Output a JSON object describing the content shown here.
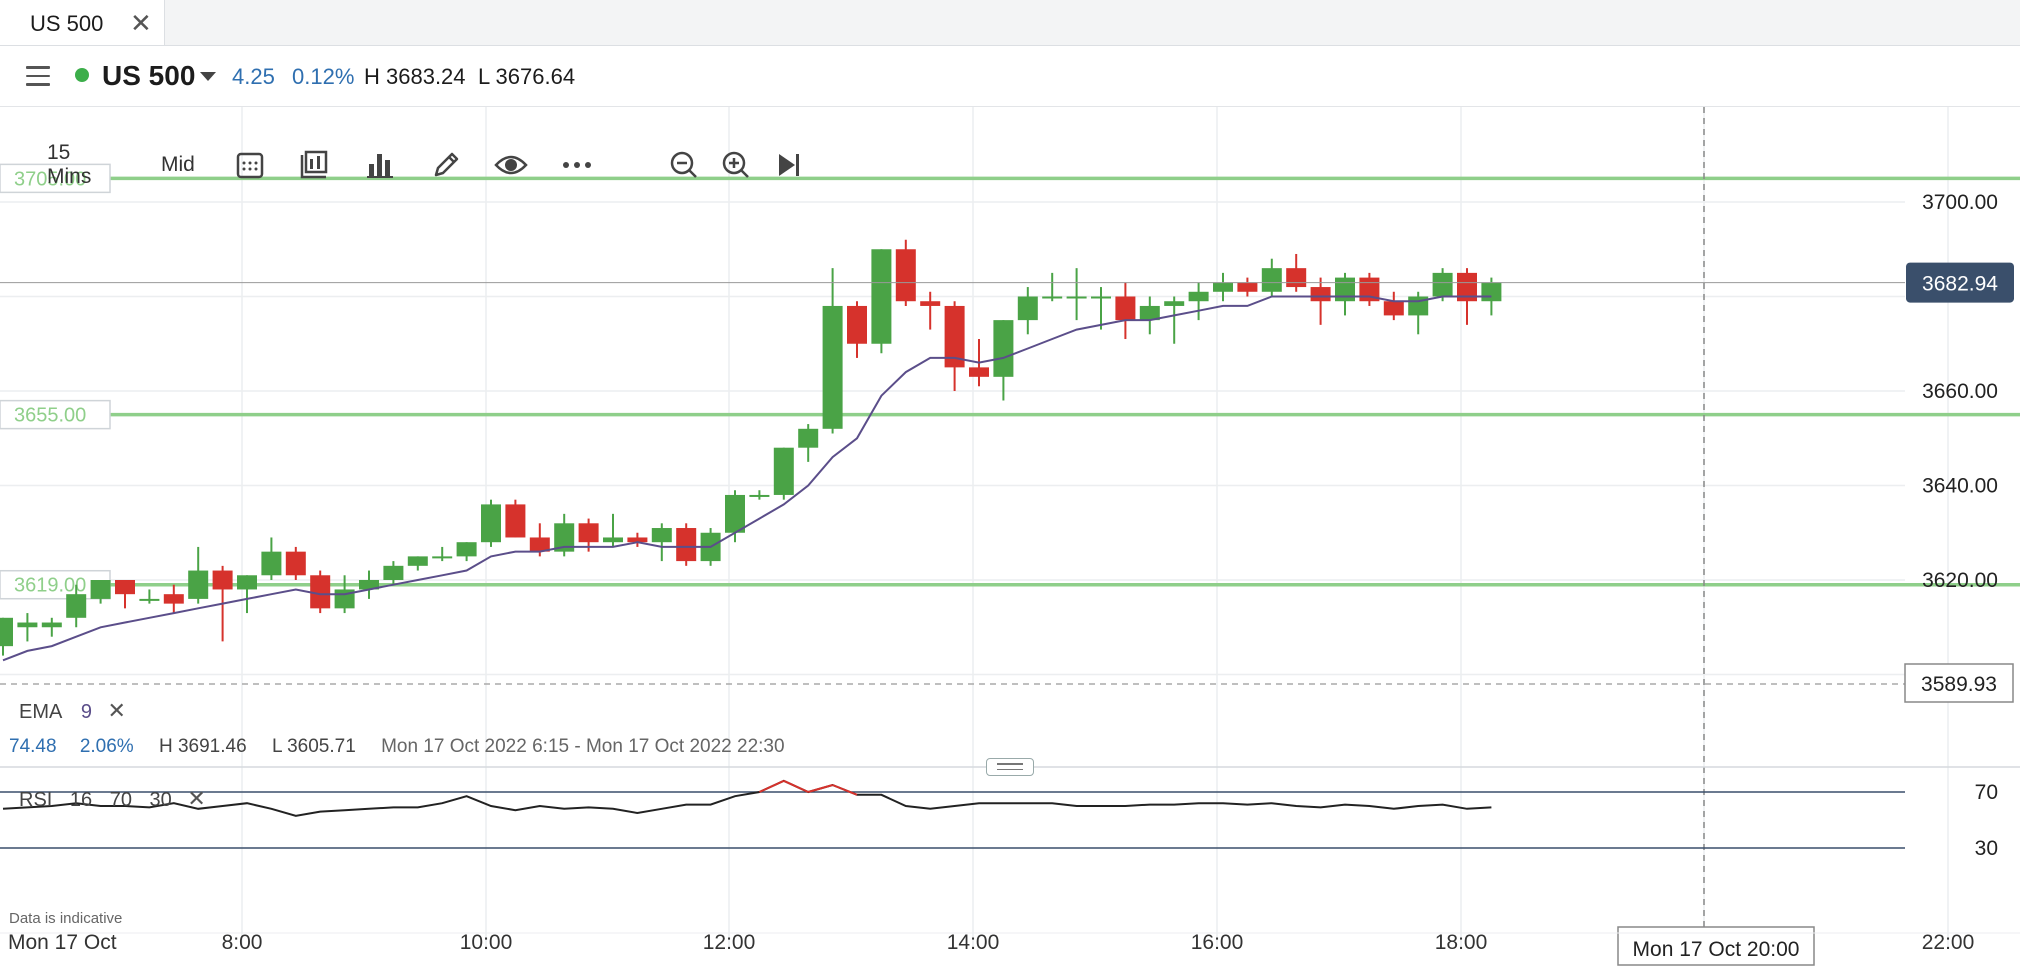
{
  "tab": {
    "label": "US 500",
    "close": "✕"
  },
  "header": {
    "instrument": "US 500",
    "change": "4.25",
    "change_pct": "0.12%",
    "high": "H 3683.24",
    "low": "L 3676.64",
    "status_color": "#3cae4a"
  },
  "toolbar": {
    "timeframe": "15 Mins",
    "price_type": "Mid",
    "icons": [
      "calendar-icon",
      "chart-type-icon",
      "indicators-icon",
      "draw-icon",
      "eye-icon",
      "more-icon",
      "zoom-out-icon",
      "zoom-in-icon",
      "jump-to-latest-icon"
    ]
  },
  "ema": {
    "label": "EMA",
    "period": "9",
    "close": "✕"
  },
  "range_info": {
    "change": "74.48",
    "change_pct": "2.06%",
    "high": "H 3691.46",
    "low": "L 3605.71",
    "period": "Mon 17 Oct 2022 6:15 - Mon 17 Oct 2022 22:30"
  },
  "rsi": {
    "label": "RSI",
    "period": "16",
    "upper": "70",
    "lower": "30",
    "close": "✕"
  },
  "disclaimer": "Data is indicative",
  "colors": {
    "up": "#4aa346",
    "down": "#d6322c",
    "ema": "#5b4e8a",
    "level": "#8fcf8a",
    "accent": "#2f6fb0"
  },
  "chart_data": {
    "type": "candlestick",
    "x_ticks": [
      "Mon 17 Oct",
      "8:00",
      "10:00",
      "12:00",
      "14:00",
      "16:00",
      "18:00",
      "20:00",
      "22:00"
    ],
    "y_ticks": [
      "3700.00",
      "3660.00",
      "3640.00",
      "3620.00"
    ],
    "price_label": "3682.94",
    "low_label": "3589.93",
    "crosshair_label": "Mon 17 Oct 20:00",
    "levels": [
      {
        "label": "3705.00",
        "value": 3705
      },
      {
        "label": "3655.00",
        "value": 3655
      },
      {
        "label": "3619.00",
        "value": 3619
      }
    ],
    "ohlc": [
      [
        3606,
        3612,
        3604,
        3612
      ],
      [
        3610,
        3613,
        3607,
        3611
      ],
      [
        3610,
        3612,
        3608,
        3611
      ],
      [
        3612,
        3619,
        3610,
        3617
      ],
      [
        3616,
        3620,
        3615,
        3620
      ],
      [
        3620,
        3620,
        3614,
        3617
      ],
      [
        3616,
        3618,
        3615,
        3616
      ],
      [
        3617,
        3619,
        3613,
        3615
      ],
      [
        3616,
        3627,
        3615,
        3622
      ],
      [
        3622,
        3623,
        3607,
        3618
      ],
      [
        3618,
        3621,
        3613,
        3621
      ],
      [
        3621,
        3629,
        3620,
        3626
      ],
      [
        3626,
        3627,
        3620,
        3621
      ],
      [
        3621,
        3622,
        3613,
        3614
      ],
      [
        3614,
        3621,
        3613,
        3618
      ],
      [
        3618,
        3622,
        3616,
        3620
      ],
      [
        3620,
        3624,
        3619,
        3623
      ],
      [
        3623,
        3625,
        3622,
        3625
      ],
      [
        3625,
        3627,
        3624,
        3625
      ],
      [
        3625,
        3628,
        3624,
        3628
      ],
      [
        3628,
        3637,
        3627,
        3636
      ],
      [
        3636,
        3637,
        3629,
        3629
      ],
      [
        3629,
        3632,
        3625,
        3626
      ],
      [
        3626,
        3634,
        3625,
        3632
      ],
      [
        3632,
        3633,
        3626,
        3628
      ],
      [
        3628,
        3634,
        3627,
        3629
      ],
      [
        3629,
        3630,
        3627,
        3628
      ],
      [
        3628,
        3632,
        3624,
        3631
      ],
      [
        3631,
        3632,
        3623,
        3624
      ],
      [
        3624,
        3631,
        3623,
        3630
      ],
      [
        3630,
        3639,
        3628,
        3638
      ],
      [
        3638,
        3639,
        3637,
        3638
      ],
      [
        3638,
        3648,
        3637,
        3648
      ],
      [
        3648,
        3653,
        3645,
        3652
      ],
      [
        3652,
        3686,
        3651,
        3678
      ],
      [
        3678,
        3679,
        3667,
        3670
      ],
      [
        3670,
        3690,
        3668,
        3690
      ],
      [
        3690,
        3692,
        3678,
        3679
      ],
      [
        3679,
        3681,
        3673,
        3678
      ],
      [
        3678,
        3679,
        3660,
        3665
      ],
      [
        3665,
        3671,
        3661,
        3663
      ],
      [
        3663,
        3675,
        3658,
        3675
      ],
      [
        3675,
        3682,
        3672,
        3680
      ],
      [
        3680,
        3685,
        3679,
        3680
      ],
      [
        3680,
        3686,
        3675,
        3680
      ],
      [
        3680,
        3682,
        3673,
        3680
      ],
      [
        3680,
        3683,
        3671,
        3675
      ],
      [
        3675,
        3680,
        3672,
        3678
      ],
      [
        3678,
        3680,
        3670,
        3679
      ],
      [
        3679,
        3683,
        3675,
        3681
      ],
      [
        3681,
        3685,
        3679,
        3683
      ],
      [
        3683,
        3684,
        3680,
        3681
      ],
      [
        3681,
        3688,
        3680,
        3686
      ],
      [
        3686,
        3689,
        3681,
        3682
      ],
      [
        3682,
        3684,
        3674,
        3679
      ],
      [
        3679,
        3685,
        3676,
        3684
      ],
      [
        3684,
        3685,
        3678,
        3679
      ],
      [
        3679,
        3681,
        3675,
        3676
      ],
      [
        3676,
        3681,
        3672,
        3680
      ],
      [
        3680,
        3686,
        3679,
        3685
      ],
      [
        3685,
        3686,
        3674,
        3679
      ],
      [
        3679,
        3684,
        3676,
        3683
      ]
    ],
    "ema": [
      3603,
      3605,
      3606,
      3608,
      3610,
      3611,
      3612,
      3613,
      3614,
      3615,
      3616,
      3617,
      3618,
      3617,
      3617,
      3618,
      3619,
      3620,
      3621,
      3622,
      3625,
      3626,
      3626,
      3627,
      3627,
      3627,
      3628,
      3627,
      3627,
      3627,
      3630,
      3633,
      3636,
      3640,
      3646,
      3650,
      3659,
      3664,
      3667,
      3667,
      3666,
      3667,
      3669,
      3671,
      3673,
      3674,
      3675,
      3675,
      3676,
      3677,
      3678,
      3678,
      3680,
      3680,
      3680,
      3680,
      3680,
      3679,
      3679,
      3680,
      3680,
      3680
    ],
    "rsi": [
      58,
      59,
      60,
      62,
      60,
      60,
      59,
      62,
      58,
      60,
      62,
      58,
      53,
      56,
      57,
      58,
      59,
      59,
      62,
      67,
      60,
      57,
      60,
      58,
      59,
      58,
      55,
      58,
      61,
      61,
      67,
      70,
      78,
      70,
      75,
      68,
      68,
      60,
      58,
      60,
      62,
      62,
      62,
      62,
      60,
      60,
      60,
      61,
      61,
      62,
      62,
      61,
      62,
      60,
      59,
      61,
      60,
      58,
      60,
      61,
      58,
      59
    ],
    "rsi_range": [
      0,
      100
    ]
  }
}
